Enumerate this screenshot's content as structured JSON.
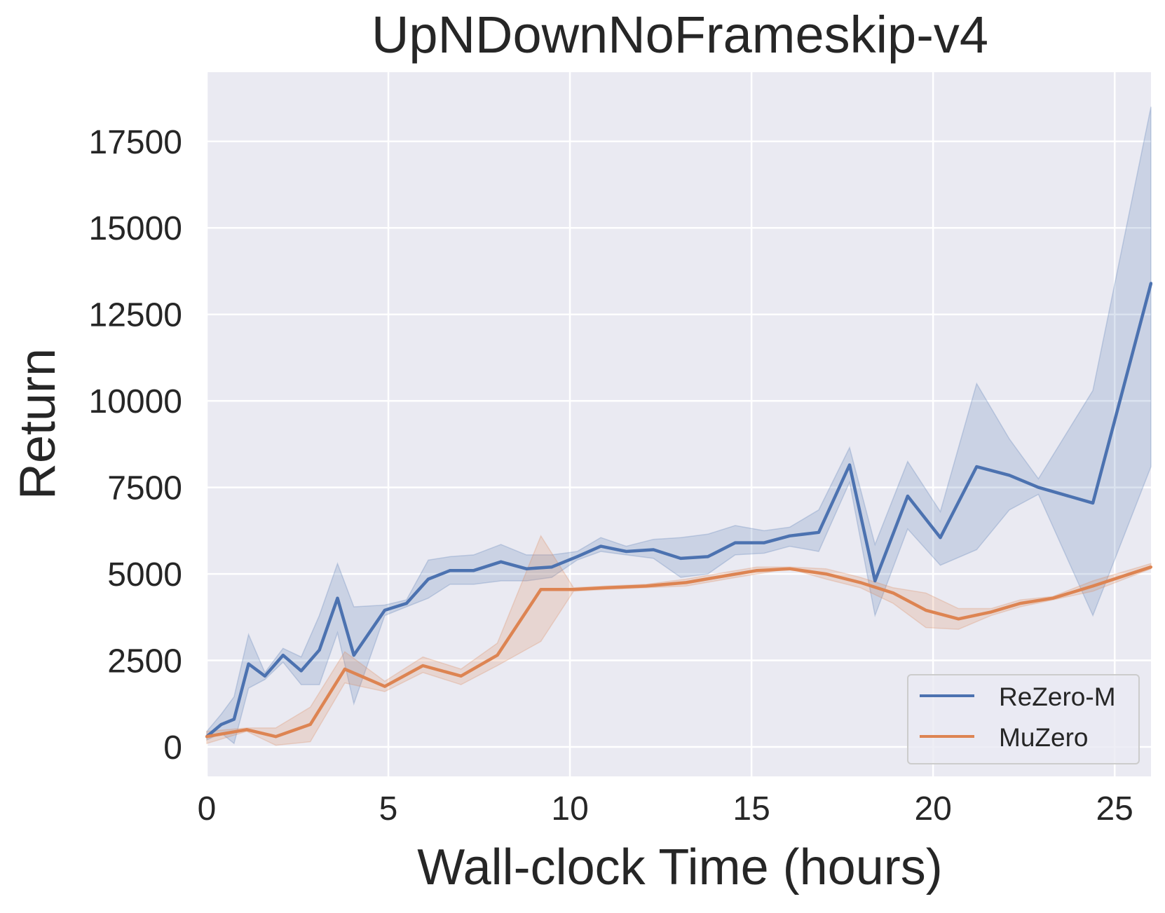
{
  "chart_data": {
    "type": "line",
    "title": "UpNDownNoFrameskip-v4",
    "xlabel": "Wall-clock Time (hours)",
    "ylabel": "Return",
    "xlim": [
      0,
      26
    ],
    "ylim": [
      -850,
      19500
    ],
    "xticks": [
      0,
      5,
      10,
      15,
      20,
      25
    ],
    "yticks": [
      0,
      2500,
      5000,
      7500,
      10000,
      12500,
      15000,
      17500
    ],
    "grid": true,
    "legend_position": "bottom-right",
    "background": "#eaeaf2",
    "series": [
      {
        "name": "ReZero-M",
        "color": "#4c72b0",
        "x": [
          0,
          0.4,
          0.75,
          1.15,
          1.6,
          2.1,
          2.6,
          3.1,
          3.6,
          4.05,
          4.9,
          5.5,
          6.1,
          6.7,
          7.35,
          8.1,
          8.8,
          9.5,
          10.2,
          10.85,
          11.55,
          12.3,
          13.05,
          13.8,
          14.55,
          15.35,
          16.05,
          16.85,
          17.7,
          18.4,
          19.3,
          20.2,
          21.2,
          22.1,
          22.9,
          24.4,
          26
        ],
        "y": [
          300,
          650,
          800,
          2400,
          2050,
          2650,
          2200,
          2800,
          4300,
          2650,
          3950,
          4150,
          4850,
          5100,
          5100,
          5350,
          5150,
          5200,
          5500,
          5800,
          5650,
          5700,
          5450,
          5500,
          5900,
          5900,
          6100,
          6200,
          8150,
          4800,
          7250,
          6050,
          8100,
          7850,
          7500,
          7050,
          13400
        ],
        "lower": [
          200,
          400,
          100,
          1700,
          1950,
          2450,
          1800,
          1800,
          3300,
          1250,
          3800,
          4050,
          4300,
          4700,
          4700,
          4800,
          4800,
          4900,
          5400,
          5650,
          5550,
          5450,
          4900,
          5000,
          5550,
          5600,
          5800,
          5650,
          7650,
          3800,
          6300,
          5250,
          5700,
          6850,
          7300,
          3800,
          8100
        ],
        "upper": [
          450,
          950,
          1450,
          3250,
          2150,
          2850,
          2600,
          3800,
          5300,
          4050,
          4100,
          4250,
          5400,
          5500,
          5550,
          5850,
          5550,
          5550,
          5650,
          6050,
          5800,
          6000,
          6050,
          6150,
          6400,
          6250,
          6350,
          6850,
          8650,
          5850,
          8250,
          6800,
          10500,
          8900,
          7750,
          10300,
          18500
        ]
      },
      {
        "name": "MuZero",
        "color": "#dd8452",
        "x": [
          0,
          1.1,
          1.9,
          2.85,
          3.8,
          4.9,
          5.95,
          7.0,
          8.0,
          9.2,
          10.1,
          11.0,
          12.1,
          13.2,
          14.3,
          15.15,
          16.05,
          17.05,
          18.0,
          18.9,
          19.8,
          20.7,
          21.6,
          22.4,
          23.3,
          24.4,
          26
        ],
        "y": [
          300,
          500,
          300,
          650,
          2250,
          1750,
          2350,
          2050,
          2650,
          4550,
          4550,
          4600,
          4650,
          4750,
          4950,
          5100,
          5150,
          5000,
          4750,
          4450,
          3950,
          3700,
          3900,
          4150,
          4300,
          4650,
          5200
        ],
        "lower": [
          100,
          450,
          50,
          150,
          1850,
          1600,
          2150,
          1800,
          2350,
          3050,
          4500,
          4550,
          4600,
          4650,
          4850,
          5000,
          5150,
          4850,
          4600,
          4150,
          3450,
          3400,
          3800,
          4050,
          4250,
          4500,
          5150
        ],
        "upper": [
          450,
          550,
          550,
          1150,
          2750,
          1900,
          2600,
          2250,
          3000,
          6100,
          4600,
          4650,
          4700,
          4850,
          5050,
          5200,
          5200,
          5150,
          4900,
          4600,
          4450,
          4000,
          4000,
          4250,
          4350,
          4800,
          5300
        ]
      }
    ]
  }
}
